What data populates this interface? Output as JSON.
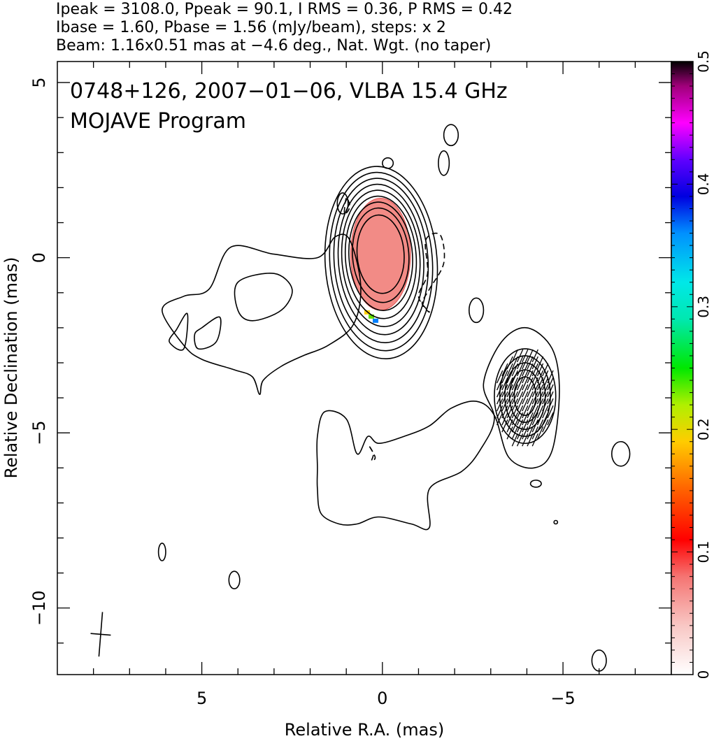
{
  "chart_data": {
    "type": "contour",
    "header": [
      "Ipeak = 3108.0, Ppeak = 90.1, I RMS = 0.36, P RMS = 0.42",
      "Ibase = 1.60, Pbase = 1.56 (mJy/beam), steps: x 2",
      "Beam: 1.16x0.51 mas at −4.6 deg., Nat. Wgt. (no taper)"
    ],
    "annotations": [
      "0748+126, 2007−01−06, VLBA 15.4 GHz",
      "MOJAVE Program"
    ],
    "xlabel": "Relative R.A. (mas)",
    "ylabel": "Relative Declination (mas)",
    "xlim": [
      9,
      -8
    ],
    "ylim": [
      -11.9,
      5.6
    ],
    "x_ticks": [
      {
        "v": 5,
        "label": "5"
      },
      {
        "v": 0,
        "label": "0"
      },
      {
        "v": -5,
        "label": "−5"
      }
    ],
    "y_ticks": [
      {
        "v": 5,
        "label": "5"
      },
      {
        "v": 0,
        "label": "0"
      },
      {
        "v": -5,
        "label": "−5"
      },
      {
        "v": -10,
        "label": "−10"
      }
    ],
    "beam": {
      "major_mas": 1.16,
      "minor_mas": 0.51,
      "pa_deg": -4.6,
      "center": [
        7.8,
        -10.75
      ]
    },
    "colorbar": {
      "min": 0,
      "max": 0.5,
      "ticks": [
        {
          "v": 0,
          "label": "0"
        },
        {
          "v": 0.1,
          "label": "0.1"
        },
        {
          "v": 0.2,
          "label": "0.2"
        },
        {
          "v": 0.3,
          "label": "0.3"
        },
        {
          "v": 0.4,
          "label": "0.4"
        },
        {
          "v": 0.5,
          "label": "0.5"
        }
      ]
    },
    "core": {
      "center": [
        0.05,
        0.1
      ],
      "contours_semi_axes": [
        [
          0.65,
          1.12
        ],
        [
          0.78,
          1.35
        ],
        [
          0.88,
          1.55
        ],
        [
          0.98,
          1.75
        ],
        [
          1.08,
          1.95
        ],
        [
          1.18,
          2.15
        ],
        [
          1.3,
          2.35
        ],
        [
          1.42,
          2.55
        ],
        [
          1.55,
          2.75
        ]
      ],
      "fill_semi_axes": [
        0.83,
        1.6
      ],
      "fill_color": "#f28b86"
    },
    "jet_contours": [
      [
        [
          0.0,
          -1.9
        ],
        [
          -0.1,
          -2.2
        ],
        [
          -0.2,
          -2.15
        ],
        [
          -0.15,
          -1.8
        ],
        [
          -0.1,
          -1.6
        ]
      ],
      [
        [
          1.3,
          0.0
        ],
        [
          1.3,
          -0.9
        ],
        [
          1.5,
          -1.9
        ],
        [
          1.0,
          -2.1
        ],
        [
          0.4,
          -1.7
        ],
        [
          0.8,
          -1.0
        ],
        [
          1.5,
          -0.7
        ],
        [
          2.8,
          -0.8
        ],
        [
          3.5,
          -0.4
        ],
        [
          3.5,
          -0.95
        ],
        [
          2.8,
          -0.9
        ]
      ]
    ],
    "outer_contour": [
      [
        1.3,
        0.6
      ],
      [
        1.8,
        0.0
      ],
      [
        3.0,
        0.1
      ],
      [
        4.2,
        0.3
      ],
      [
        4.8,
        -0.9
      ],
      [
        5.5,
        -1.1
      ],
      [
        6.1,
        -1.5
      ],
      [
        5.5,
        -2.5
      ],
      [
        5.0,
        -2.9
      ],
      [
        4.1,
        -3.2
      ],
      [
        3.6,
        -3.4
      ],
      [
        3.4,
        -3.9
      ],
      [
        3.3,
        -3.5
      ],
      [
        2.8,
        -3.1
      ],
      [
        2.2,
        -2.8
      ],
      [
        1.5,
        -2.5
      ],
      [
        0.8,
        -1.9
      ],
      [
        0.6,
        -0.8
      ],
      [
        0.9,
        0.5
      ]
    ],
    "inner_jet_contour": [
      [
        4.0,
        -0.7
      ],
      [
        3.0,
        -0.45
      ],
      [
        2.5,
        -0.9
      ],
      [
        2.8,
        -1.5
      ],
      [
        3.6,
        -1.8
      ],
      [
        4.0,
        -1.5
      ]
    ],
    "jet_knot_contours": [
      [
        [
          5.0,
          -2.0
        ],
        [
          4.5,
          -1.7
        ],
        [
          4.6,
          -2.4
        ],
        [
          5.1,
          -2.6
        ],
        [
          5.2,
          -2.2
        ]
      ],
      [
        [
          5.7,
          -2.05
        ],
        [
          5.4,
          -1.6
        ],
        [
          5.5,
          -2.6
        ],
        [
          5.9,
          -2.4
        ]
      ]
    ],
    "southern_component": {
      "center": [
        -3.95,
        -3.95
      ],
      "contours_semi_axes": [
        [
          0.3,
          0.55
        ],
        [
          0.43,
          0.75
        ],
        [
          0.56,
          0.95
        ],
        [
          0.7,
          1.15
        ],
        [
          0.85,
          1.35
        ]
      ],
      "outline": [
        [
          -4.0,
          -2.0
        ],
        [
          -4.7,
          -2.6
        ],
        [
          -4.9,
          -3.8
        ],
        [
          -4.7,
          -5.5
        ],
        [
          -4.2,
          -6.0
        ],
        [
          -3.5,
          -5.7
        ],
        [
          -3.1,
          -4.5
        ],
        [
          -2.6,
          -4.1
        ],
        [
          -1.9,
          -4.3
        ],
        [
          -1.3,
          -4.8
        ],
        [
          -0.6,
          -5.1
        ],
        [
          0.1,
          -5.3
        ],
        [
          0.4,
          -5.1
        ],
        [
          0.7,
          -5.6
        ],
        [
          1.0,
          -4.6
        ],
        [
          1.6,
          -4.4
        ],
        [
          1.8,
          -5.1
        ],
        [
          1.8,
          -6.0
        ],
        [
          1.8,
          -6.6
        ],
        [
          1.7,
          -7.3
        ],
        [
          1.2,
          -7.6
        ],
        [
          0.7,
          -7.6
        ],
        [
          0.1,
          -7.4
        ],
        [
          -0.8,
          -7.6
        ],
        [
          -1.3,
          -7.7
        ],
        [
          -1.3,
          -6.6
        ],
        [
          -2.2,
          -6.1
        ],
        [
          -2.7,
          -5.5
        ],
        [
          -3.1,
          -4.6
        ],
        [
          -2.8,
          -3.6
        ],
        [
          -3.3,
          -2.4
        ]
      ]
    },
    "polarization_ticks_center": [
      -3.95,
      -4.0
    ],
    "isolated_contours": [
      [
        -1.9,
        3.5,
        0.2,
        0.3
      ],
      [
        -1.7,
        2.7,
        0.15,
        0.35
      ],
      [
        -0.15,
        2.7,
        0.15,
        0.15
      ],
      [
        1.1,
        1.55,
        0.15,
        0.3
      ],
      [
        -2.6,
        -1.5,
        0.2,
        0.35
      ],
      [
        -6.6,
        -5.6,
        0.25,
        0.35
      ],
      [
        -4.25,
        -6.45,
        0.15,
        0.1
      ],
      [
        -4.8,
        -7.55,
        0.05,
        0.05
      ],
      [
        6.1,
        -8.4,
        0.1,
        0.25
      ],
      [
        4.1,
        -9.2,
        0.15,
        0.25
      ],
      [
        -6.0,
        -11.5,
        0.2,
        0.3
      ]
    ],
    "dashed_contours": [
      [
        [
          1.0,
          1.7
        ],
        [
          1.05,
          1.25
        ],
        [
          0.9,
          1.45
        ]
      ],
      [
        [
          -1.2,
          0.5
        ],
        [
          -1.6,
          0.65
        ],
        [
          -1.7,
          -0.15
        ],
        [
          -1.3,
          -0.9
        ],
        [
          -1.1,
          -1.3
        ],
        [
          -1.3,
          -1.55
        ],
        [
          -1.0,
          -1.1
        ],
        [
          -1.25,
          -0.45
        ]
      ],
      [
        [
          0.35,
          -5.4
        ],
        [
          0.25,
          -5.6
        ],
        [
          0.3,
          -5.8
        ],
        [
          0.2,
          -5.7
        ]
      ]
    ]
  }
}
